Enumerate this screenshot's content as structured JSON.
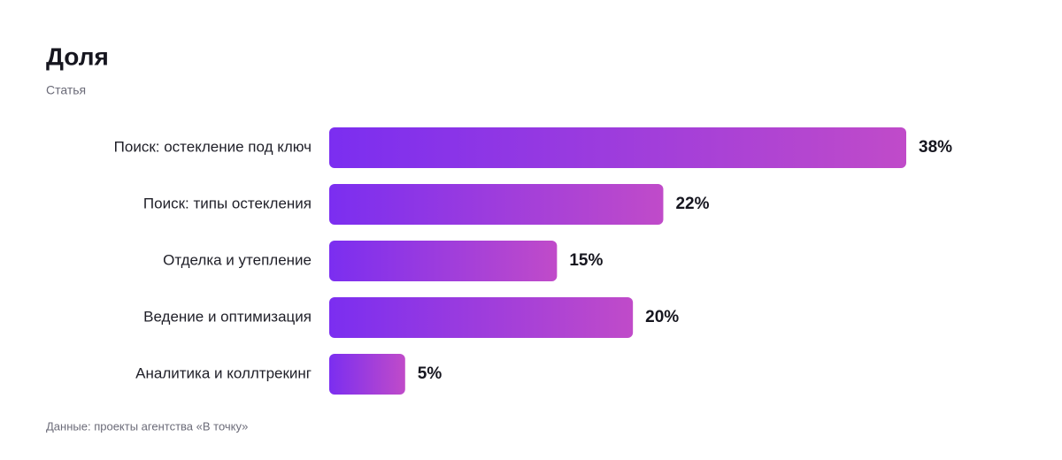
{
  "chart_data": {
    "type": "bar",
    "orientation": "horizontal",
    "title": "Доля",
    "subtitle": "Статья",
    "categories": [
      "Поиск: остекление под ключ",
      "Поиск: типы остекления",
      "Отделка и утепление",
      "Ведение и оптимизация",
      "Аналитика и коллтрекинг"
    ],
    "values": [
      38,
      22,
      15,
      20,
      5
    ],
    "value_labels": [
      "38%",
      "22%",
      "15%",
      "20%",
      "5%"
    ],
    "gradient": [
      "#7b2ef0",
      "#c04bc9"
    ],
    "source": "Данные: проекты агентства «В точку»"
  }
}
